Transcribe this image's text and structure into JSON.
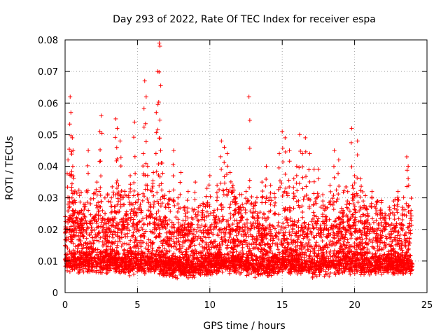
{
  "chart_data": {
    "type": "scatter",
    "title": "Day 293 of 2022, Rate Of TEC Index for receiver espa",
    "xlabel": "GPS time / hours",
    "ylabel": "ROTI / TECUs",
    "xlim": [
      0,
      25
    ],
    "ylim": [
      0,
      0.08
    ],
    "xticks": [
      "0",
      "5",
      "10",
      "15",
      "20",
      "25"
    ],
    "yticks": [
      "0",
      "0.01",
      "0.02",
      "0.03",
      "0.04",
      "0.05",
      "0.06",
      "0.07",
      "0.08"
    ],
    "grid": true,
    "marker": "plus",
    "color": "#ff0000",
    "series": [
      {
        "x": [
          0.05,
          0.2,
          0.3,
          0.35,
          0.4,
          0.45,
          0.5,
          0.55,
          0.6,
          0.75,
          0.9,
          1.1,
          1.3,
          1.6,
          1.8,
          2.0,
          2.2,
          2.4,
          2.5,
          2.6,
          2.8,
          3.0,
          3.2,
          3.5,
          3.6,
          3.7,
          3.8,
          4.0,
          4.2,
          4.5,
          4.8,
          5.0,
          5.2,
          5.4,
          5.5,
          5.6,
          5.7,
          5.9,
          6.1,
          6.3,
          6.4,
          6.5,
          6.55,
          6.6,
          6.7,
          6.9,
          7.2,
          7.5,
          7.8,
          8.0,
          8.3,
          8.5,
          8.7,
          9.0,
          9.2,
          9.5,
          9.8,
          10.0,
          10.3,
          10.5,
          10.8,
          11.0,
          11.2,
          11.4,
          11.6,
          11.8,
          12.0,
          12.2,
          12.5,
          12.7,
          13.0,
          13.3,
          13.6,
          13.9,
          14.2,
          14.5,
          14.8,
          15.0,
          15.2,
          15.5,
          15.8,
          16.0,
          16.2,
          16.4,
          16.6,
          16.9,
          17.2,
          17.5,
          17.8,
          18.0,
          18.3,
          18.6,
          18.9,
          19.2,
          19.5,
          19.8,
          19.9,
          20.0,
          20.2,
          20.4,
          20.6,
          20.9,
          21.2,
          21.5,
          21.8,
          22.1,
          22.4,
          22.7,
          23.0,
          23.3,
          23.6,
          23.7,
          23.9
        ],
        "y": [
          0.012,
          0.042,
          0.03,
          0.062,
          0.057,
          0.037,
          0.049,
          0.045,
          0.026,
          0.018,
          0.015,
          0.022,
          0.028,
          0.045,
          0.019,
          0.024,
          0.035,
          0.051,
          0.056,
          0.016,
          0.018,
          0.022,
          0.03,
          0.055,
          0.052,
          0.034,
          0.048,
          0.021,
          0.025,
          0.037,
          0.054,
          0.031,
          0.028,
          0.044,
          0.067,
          0.062,
          0.04,
          0.028,
          0.038,
          0.057,
          0.07,
          0.079,
          0.078,
          0.045,
          0.041,
          0.024,
          0.032,
          0.045,
          0.03,
          0.038,
          0.025,
          0.032,
          0.022,
          0.035,
          0.027,
          0.026,
          0.033,
          0.037,
          0.026,
          0.034,
          0.048,
          0.046,
          0.044,
          0.038,
          0.034,
          0.03,
          0.027,
          0.024,
          0.032,
          0.062,
          0.028,
          0.025,
          0.035,
          0.04,
          0.034,
          0.03,
          0.044,
          0.051,
          0.049,
          0.045,
          0.036,
          0.04,
          0.05,
          0.044,
          0.049,
          0.044,
          0.039,
          0.039,
          0.031,
          0.024,
          0.034,
          0.045,
          0.042,
          0.026,
          0.029,
          0.052,
          0.033,
          0.037,
          0.048,
          0.036,
          0.029,
          0.025,
          0.032,
          0.028,
          0.026,
          0.025,
          0.027,
          0.029,
          0.032,
          0.027,
          0.043,
          0.04,
          0.026
        ]
      }
    ],
    "baseband": {
      "x": [
        0,
        1,
        2,
        3,
        4,
        5,
        6,
        7,
        8,
        9,
        10,
        11,
        12,
        13,
        14,
        15,
        16,
        17,
        18,
        19,
        20,
        21,
        22,
        23,
        24
      ],
      "median": [
        0.012,
        0.012,
        0.012,
        0.012,
        0.012,
        0.012,
        0.012,
        0.011,
        0.01,
        0.01,
        0.011,
        0.012,
        0.012,
        0.011,
        0.011,
        0.012,
        0.012,
        0.011,
        0.011,
        0.012,
        0.012,
        0.011,
        0.011,
        0.011,
        0.011
      ],
      "min": [
        0.006,
        0.005,
        0.005,
        0.005,
        0.004,
        0.005,
        0.005,
        0.004,
        0.004,
        0.004,
        0.005,
        0.005,
        0.005,
        0.004,
        0.004,
        0.005,
        0.005,
        0.004,
        0.004,
        0.005,
        0.005,
        0.005,
        0.005,
        0.005,
        0.005
      ],
      "upper": [
        0.024,
        0.024,
        0.023,
        0.024,
        0.024,
        0.024,
        0.025,
        0.022,
        0.02,
        0.02,
        0.022,
        0.024,
        0.024,
        0.022,
        0.022,
        0.024,
        0.024,
        0.022,
        0.022,
        0.024,
        0.024,
        0.022,
        0.022,
        0.022,
        0.022
      ]
    }
  }
}
